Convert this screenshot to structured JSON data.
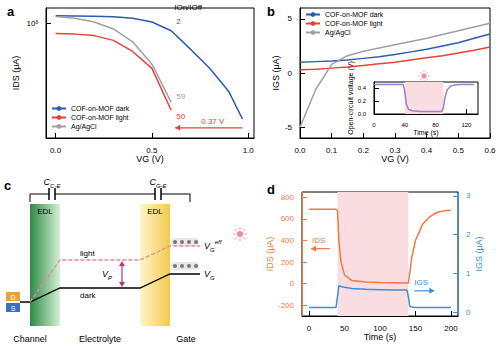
{
  "chart_data": [
    {
      "title": "a",
      "type": "line",
      "log": "y",
      "grid": false,
      "x_label": "VG (V)",
      "y_label": "IDS (μA)",
      "xlim": [
        -0.05,
        1.03
      ],
      "xticks": [
        {
          "value": 0,
          "label": "0.0"
        },
        {
          "value": 0.5,
          "label": "0.5"
        },
        {
          "value": 1,
          "label": "1.0"
        }
      ],
      "ylim": [
        5,
        2000
      ],
      "yticks": [
        {
          "value": 1000,
          "label": "10³"
        }
      ],
      "legend": "lower left",
      "ratio_title": "IOn/IOff",
      "shift_label": "0.37 V",
      "series": [
        {
          "name": "COF-on-MOF dark",
          "color": "#2a5db0",
          "on_off_ratio": 2,
          "x": [
            0,
            0.1,
            0.2,
            0.3,
            0.4,
            0.5,
            0.6,
            0.7,
            0.8,
            0.9,
            0.97
          ],
          "values": [
            1400,
            1390,
            1370,
            1330,
            1250,
            1050,
            700,
            300,
            124,
            42,
            12
          ]
        },
        {
          "name": "COF-on-MOF light",
          "color": "#e8413a",
          "on_off_ratio": 50,
          "x": [
            0,
            0.1,
            0.2,
            0.3,
            0.4,
            0.5,
            0.6
          ],
          "values": [
            620,
            600,
            560,
            450,
            270,
            124,
            18
          ]
        },
        {
          "name": "Ag/AgCl",
          "color": "#a0a0a0",
          "on_off_ratio": 59,
          "x": [
            0,
            0.1,
            0.2,
            0.3,
            0.4,
            0.5,
            0.6
          ],
          "values": [
            1350,
            1250,
            1050,
            760,
            420,
            150,
            26
          ]
        }
      ]
    },
    {
      "title": "b",
      "type": "line",
      "grid": false,
      "x_label": "VG (V)",
      "y_label": "IGS (μA)",
      "xlim": [
        0,
        0.6
      ],
      "xticks": [
        {
          "value": 0,
          "label": "0.0"
        },
        {
          "value": 0.1,
          "label": "0.1"
        },
        {
          "value": 0.2,
          "label": "0.2"
        },
        {
          "value": 0.3,
          "label": "0.3"
        },
        {
          "value": 0.4,
          "label": "0.4"
        },
        {
          "value": 0.5,
          "label": "0.5"
        },
        {
          "value": 0.6,
          "label": "0.6"
        }
      ],
      "ylim": [
        -6,
        6
      ],
      "yticks": [
        -5,
        0,
        5
      ],
      "legend": "upper left",
      "x": [
        0,
        0.05,
        0.1,
        0.15,
        0.2,
        0.25,
        0.3,
        0.35,
        0.4,
        0.45,
        0.5,
        0.55,
        0.6
      ],
      "series": [
        {
          "name": "COF-on-MOF dark",
          "color": "#2a5db0",
          "values": [
            1.0,
            1.05,
            1.1,
            1.2,
            1.35,
            1.5,
            1.7,
            1.95,
            2.2,
            2.5,
            2.8,
            3.2,
            3.6
          ]
        },
        {
          "name": "COF-on-MOF light",
          "color": "#e8413a",
          "values": [
            0.3,
            0.35,
            0.45,
            0.55,
            0.7,
            0.85,
            1.0,
            1.2,
            1.4,
            1.6,
            1.85,
            2.1,
            2.4
          ]
        },
        {
          "name": "Ag/AgCl",
          "color": "#a0a0a0",
          "values": [
            -5,
            -1.5,
            0.8,
            1.6,
            2.0,
            2.3,
            2.6,
            2.9,
            3.2,
            3.55,
            3.9,
            4.25,
            4.6
          ]
        }
      ]
    },
    {
      "type": "line",
      "grid": false,
      "x_label": "Time (s)",
      "y_label": "Open-circuit voltage (V)",
      "xlim": [
        0,
        135
      ],
      "xticks": [
        0,
        40,
        80,
        120
      ],
      "ylim": [
        0,
        0.5
      ],
      "yticks": [
        {
          "value": 0,
          "label": "0.0"
        },
        {
          "value": 0.2,
          "label": "0.2"
        },
        {
          "value": 0.4,
          "label": "0.4"
        }
      ],
      "light_period": [
        40,
        90
      ],
      "x": [
        0,
        10,
        20,
        30,
        38,
        40,
        42,
        45,
        50,
        60,
        70,
        80,
        88,
        90,
        92,
        95,
        100,
        110,
        120,
        130
      ],
      "series": [
        {
          "color": "#9b7fd4",
          "values": [
            0.46,
            0.46,
            0.46,
            0.46,
            0.46,
            0.35,
            0.15,
            0.07,
            0.05,
            0.04,
            0.04,
            0.04,
            0.04,
            0.1,
            0.25,
            0.38,
            0.44,
            0.46,
            0.46,
            0.46
          ]
        }
      ]
    },
    {
      "title": "d",
      "type": "line",
      "grid": false,
      "x_label": "Time (s)",
      "y_label": "IDS (μA)",
      "y2_label": "IGS (μA)",
      "xlim": [
        -10,
        210
      ],
      "xticks": [
        0,
        50,
        100,
        150,
        200
      ],
      "ylim": [
        -300,
        850
      ],
      "yticks": [
        -200,
        0,
        200,
        400,
        600,
        800
      ],
      "y2lim": [
        -0.1,
        3.1
      ],
      "y2ticks": [
        0,
        1,
        2,
        3
      ],
      "light_period": [
        40,
        140
      ],
      "x": [
        0,
        10,
        20,
        30,
        38,
        40,
        42,
        45,
        50,
        60,
        80,
        100,
        120,
        138,
        140,
        142,
        145,
        150,
        160,
        170,
        180,
        190,
        200
      ],
      "series": [
        {
          "label": "IDS",
          "color": "#f07b3f",
          "axis": "y",
          "values": [
            690,
            690,
            690,
            690,
            690,
            680,
            400,
            200,
            80,
            30,
            15,
            10,
            8,
            6,
            6,
            100,
            250,
            400,
            550,
            620,
            660,
            675,
            680
          ]
        },
        {
          "label": "IGS",
          "color": "#3a8fd9",
          "axis": "y2",
          "values": [
            0.12,
            0.12,
            0.12,
            0.12,
            0.12,
            0.4,
            0.68,
            0.66,
            0.64,
            0.61,
            0.59,
            0.58,
            0.57,
            0.57,
            0.4,
            0.15,
            0.13,
            0.12,
            0.12,
            0.12,
            0.12,
            0.12,
            0.12
          ]
        }
      ]
    }
  ],
  "diagram": {
    "title": "c",
    "capacitors": [
      {
        "main": "C",
        "sub": "C-E"
      },
      {
        "main": "C",
        "sub": "G-E"
      }
    ],
    "layers": [
      "EDL",
      "EDL"
    ],
    "light": "light",
    "dark": "dark",
    "potential": {
      "main": "V",
      "sub": "P"
    },
    "gate_effective": {
      "main": "V",
      "sub": "G",
      "sup": "eff"
    },
    "gate": {
      "main": "V",
      "sub": "G"
    },
    "terminals": [
      "D",
      "S"
    ],
    "regions": [
      "Channel",
      "Electrolyte",
      "Gate"
    ]
  }
}
